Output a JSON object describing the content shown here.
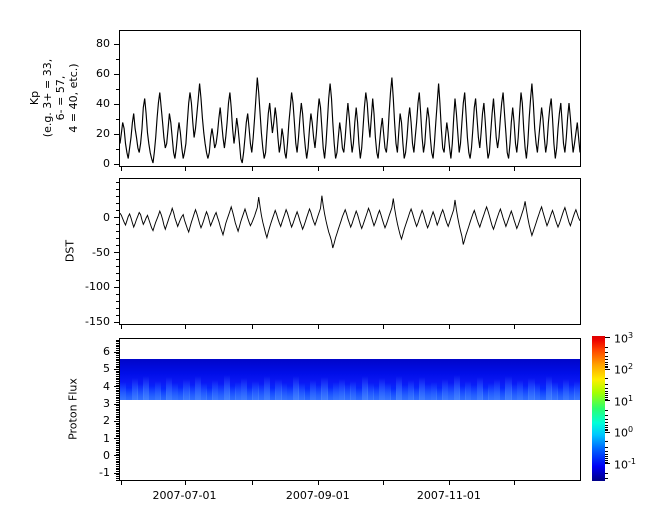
{
  "figure": {
    "background": "#ffffff",
    "line_color": "#000000",
    "kind": "stacked time-series plot (space weather: Kp, DST, Proton Flux)"
  },
  "x_axis": {
    "span_days": 214,
    "start": "2007-06-01",
    "end": "2008-01-01",
    "ticks": [
      {
        "day": 0,
        "label": ""
      },
      {
        "day": 30,
        "label": "2007-07-01"
      },
      {
        "day": 61,
        "label": ""
      },
      {
        "day": 92,
        "label": "2007-09-01"
      },
      {
        "day": 122,
        "label": ""
      },
      {
        "day": 153,
        "label": "2007-11-01"
      },
      {
        "day": 183,
        "label": ""
      }
    ]
  },
  "chart_data": [
    {
      "type": "line",
      "title": "",
      "ylabel": "Kp (e.g. 3+ = 33, 6- = 57, 4 = 40, etc.)",
      "ylabel_lines": [
        "Kp",
        "(e.g. 3+ = 33,",
        "6- = 57,",
        "4 = 40, etc.)"
      ],
      "xlabel": "",
      "x_range": [
        "2007-06-01",
        "2008-01-01"
      ],
      "ylim": [
        -2,
        88
      ],
      "yticks": [
        0,
        20,
        40,
        60,
        80
      ],
      "minor_step": 10,
      "grid": false,
      "values": [
        13,
        20,
        27,
        23,
        13,
        7,
        3,
        10,
        17,
        27,
        33,
        23,
        17,
        10,
        7,
        13,
        23,
        37,
        43,
        33,
        20,
        13,
        7,
        3,
        0,
        7,
        17,
        30,
        40,
        47,
        37,
        27,
        17,
        10,
        13,
        23,
        33,
        27,
        17,
        7,
        3,
        10,
        20,
        27,
        20,
        10,
        3,
        7,
        13,
        27,
        40,
        47,
        40,
        27,
        17,
        23,
        33,
        43,
        53,
        43,
        30,
        20,
        13,
        7,
        3,
        7,
        17,
        23,
        17,
        10,
        13,
        20,
        30,
        37,
        27,
        17,
        10,
        17,
        27,
        40,
        47,
        37,
        23,
        13,
        20,
        30,
        23,
        13,
        3,
        0,
        7,
        17,
        27,
        33,
        23,
        13,
        7,
        17,
        30,
        43,
        57,
        47,
        33,
        20,
        10,
        3,
        7,
        20,
        33,
        40,
        30,
        20,
        27,
        37,
        30,
        17,
        7,
        13,
        23,
        17,
        7,
        3,
        13,
        27,
        37,
        47,
        40,
        27,
        13,
        7,
        17,
        30,
        40,
        33,
        20,
        10,
        3,
        10,
        23,
        33,
        27,
        17,
        10,
        20,
        33,
        43,
        37,
        23,
        10,
        3,
        13,
        27,
        43,
        53,
        43,
        27,
        13,
        3,
        7,
        17,
        27,
        20,
        10,
        7,
        17,
        30,
        40,
        30,
        17,
        7,
        13,
        27,
        37,
        27,
        13,
        3,
        10,
        23,
        37,
        47,
        40,
        27,
        17,
        30,
        43,
        33,
        17,
        7,
        3,
        13,
        23,
        30,
        20,
        10,
        7,
        17,
        33,
        47,
        57,
        43,
        27,
        13,
        7,
        20,
        33,
        27,
        13,
        3,
        7,
        17,
        30,
        37,
        27,
        13,
        7,
        17,
        27,
        40,
        47,
        33,
        17,
        7,
        13,
        27,
        37,
        30,
        17,
        7,
        3,
        13,
        27,
        40,
        53,
        40,
        23,
        10,
        7,
        17,
        27,
        20,
        10,
        3,
        13,
        30,
        43,
        33,
        20,
        7,
        13,
        27,
        40,
        47,
        33,
        17,
        7,
        3,
        10,
        23,
        37,
        43,
        30,
        17,
        10,
        20,
        33,
        40,
        27,
        13,
        3,
        7,
        20,
        33,
        43,
        30,
        17,
        10,
        17,
        30,
        40,
        47,
        33,
        20,
        7,
        3,
        13,
        27,
        37,
        27,
        13,
        7,
        17,
        33,
        47,
        40,
        23,
        10,
        3,
        13,
        30,
        43,
        53,
        40,
        23,
        13,
        7,
        17,
        27,
        37,
        30,
        17,
        7,
        13,
        27,
        37,
        43,
        30,
        13,
        3,
        10,
        23,
        33,
        40,
        27,
        13,
        7,
        17,
        30,
        40,
        30,
        17,
        7,
        13,
        20,
        27,
        17,
        7
      ]
    },
    {
      "type": "line",
      "title": "",
      "ylabel": "DST",
      "xlabel": "",
      "x_range": [
        "2007-06-01",
        "2008-01-01"
      ],
      "ylim": [
        -154,
        54
      ],
      "yticks": [
        0,
        -50,
        -100,
        -150
      ],
      "minor_step": 10,
      "grid": false,
      "values": [
        5,
        2,
        -3,
        -8,
        -12,
        -6,
        0,
        4,
        -2,
        -9,
        -15,
        -10,
        -4,
        1,
        6,
        3,
        -5,
        -11,
        -7,
        -2,
        2,
        -4,
        -10,
        -16,
        -20,
        -14,
        -8,
        -3,
        2,
        8,
        3,
        -4,
        -12,
        -18,
        -12,
        -6,
        0,
        5,
        12,
        6,
        -2,
        -8,
        -14,
        -9,
        -4,
        0,
        3,
        -5,
        -11,
        -17,
        -22,
        -15,
        -8,
        -2,
        4,
        10,
        4,
        -3,
        -10,
        -16,
        -11,
        -5,
        1,
        7,
        2,
        -6,
        -13,
        -8,
        -3,
        2,
        6,
        -1,
        -7,
        -14,
        -20,
        -26,
        -18,
        -10,
        -4,
        2,
        8,
        14,
        7,
        -1,
        -9,
        -15,
        -21,
        -14,
        -7,
        -1,
        5,
        11,
        5,
        -2,
        -8,
        -13,
        -9,
        -4,
        1,
        7,
        13,
        28,
        14,
        2,
        -8,
        -16,
        -24,
        -30,
        -22,
        -15,
        -9,
        -3,
        3,
        9,
        4,
        -3,
        -9,
        -14,
        -8,
        -2,
        4,
        10,
        5,
        -2,
        -9,
        -15,
        -10,
        -4,
        2,
        7,
        1,
        -6,
        -12,
        -18,
        -13,
        -7,
        -1,
        5,
        11,
        6,
        -1,
        -7,
        -12,
        -6,
        0,
        6,
        12,
        30,
        16,
        4,
        -6,
        -14,
        -22,
        -28,
        -35,
        -45,
        -38,
        -30,
        -24,
        -18,
        -12,
        -6,
        0,
        5,
        10,
        4,
        -3,
        -9,
        -15,
        -10,
        -4,
        2,
        8,
        3,
        -4,
        -11,
        -17,
        -12,
        -6,
        0,
        6,
        12,
        7,
        0,
        -7,
        -13,
        -8,
        -2,
        4,
        9,
        3,
        -4,
        -10,
        -16,
        -11,
        -5,
        1,
        7,
        13,
        26,
        12,
        0,
        -10,
        -18,
        -26,
        -32,
        -25,
        -18,
        -12,
        -6,
        0,
        6,
        11,
        5,
        -2,
        -8,
        -14,
        -9,
        -3,
        3,
        9,
        4,
        -3,
        -10,
        -16,
        -11,
        -5,
        1,
        7,
        2,
        -5,
        -12,
        -7,
        -1,
        5,
        10,
        4,
        -3,
        -9,
        -14,
        -8,
        -2,
        4,
        10,
        24,
        10,
        -2,
        -12,
        -20,
        -28,
        -40,
        -33,
        -26,
        -20,
        -14,
        -8,
        -2,
        4,
        9,
        3,
        -4,
        -10,
        -15,
        -9,
        -3,
        3,
        9,
        14,
        8,
        1,
        -6,
        -13,
        -18,
        -12,
        -6,
        0,
        6,
        11,
        5,
        -2,
        -8,
        -14,
        -9,
        -3,
        3,
        8,
        2,
        -5,
        -11,
        -17,
        -12,
        -6,
        0,
        6,
        12,
        22,
        10,
        -2,
        -12,
        -20,
        -27,
        -21,
        -15,
        -9,
        -3,
        3,
        9,
        14,
        7,
        0,
        -7,
        -13,
        -8,
        -2,
        4,
        9,
        3,
        -4,
        -10,
        -15,
        -10,
        -4,
        2,
        8,
        13,
        6,
        -1,
        -8,
        -13,
        -7,
        -1,
        5,
        10,
        4,
        -2,
        -6
      ]
    },
    {
      "type": "heatmap",
      "title": "",
      "ylabel": "Proton Flux",
      "xlabel": "",
      "x_range": [
        "2007-06-01",
        "2008-01-01"
      ],
      "ylim": [
        -1.45,
        6.7
      ],
      "yticks": [
        -1,
        0,
        1,
        2,
        3,
        4,
        5,
        6
      ],
      "minor_step": 0.1,
      "grid": false,
      "band": {
        "y_extent": [
          3.15,
          5.55
        ],
        "description": "continuous low-flux proton band; deep blue (lowest flux, ~1e-1) in upper part, brighter blue with vertical streaks near lower edge",
        "streak_color": "#3d7dff",
        "streaks": [
          0.55,
          0.2,
          0.75,
          0.4,
          0.9,
          0.3,
          0.6,
          0.15,
          0.8,
          0.45,
          0.25,
          0.7,
          0.35,
          0.85,
          0.5,
          0.2,
          0.65,
          0.4,
          0.95,
          0.3,
          0.55,
          0.75,
          0.25,
          0.6,
          0.4,
          0.85,
          0.2,
          0.7,
          0.45,
          0.3,
          0.9,
          0.5,
          0.15,
          0.65,
          0.35,
          0.8,
          0.25,
          0.55,
          0.7,
          0.4,
          0.6,
          0.2,
          0.85,
          0.45,
          0.3,
          0.75,
          0.5,
          0.15,
          0.9,
          0.35,
          0.65,
          0.25,
          0.8,
          0.4,
          0.55,
          0.2,
          0.7,
          0.45,
          0.95,
          0.3,
          0.6,
          0.35,
          0.8,
          0.25,
          0.5,
          0.7,
          0.2,
          0.85,
          0.4,
          0.65,
          0.3,
          0.75,
          0.45,
          0.15,
          0.9,
          0.55,
          0.25,
          0.7,
          0.35,
          0.6
        ]
      },
      "colorbar": {
        "scale": "log",
        "colormap": "jet",
        "log_range": [
          -1.55,
          3.05
        ],
        "major_ticks": [
          {
            "exp": "3",
            "base": "10"
          },
          {
            "exp": "2",
            "base": "10"
          },
          {
            "exp": "1",
            "base": "10"
          },
          {
            "exp": "0",
            "base": "10"
          },
          {
            "exp": "-1",
            "base": "10"
          }
        ]
      }
    }
  ]
}
